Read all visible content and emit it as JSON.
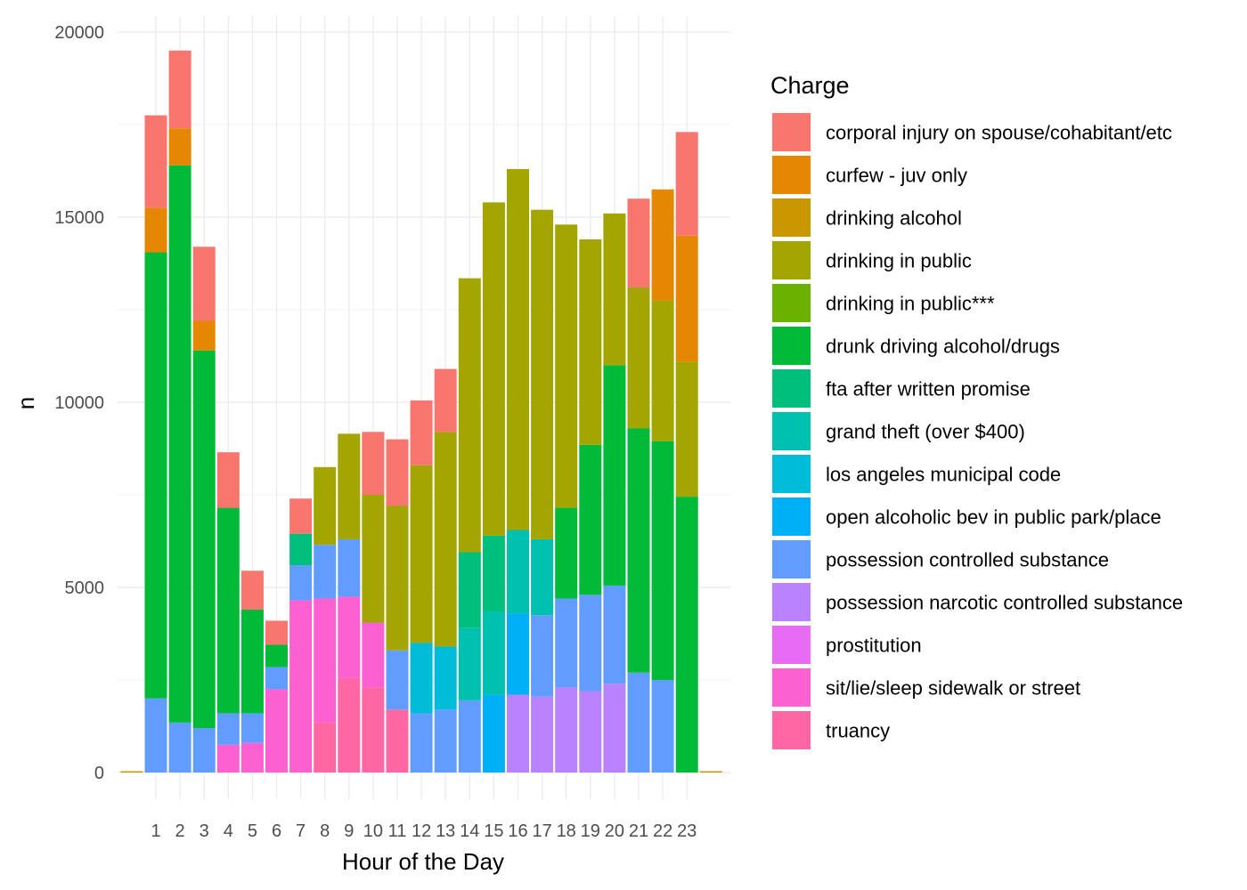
{
  "chart_data": {
    "type": "bar",
    "stacked": true,
    "title": "",
    "xlabel": "Hour of the Day",
    "ylabel": "n",
    "ylim": [
      0,
      20000
    ],
    "yticks": [
      "0",
      "5000",
      "10000",
      "15000",
      "20000"
    ],
    "categories": [
      "1",
      "2",
      "3",
      "4",
      "5",
      "6",
      "7",
      "8",
      "9",
      "10",
      "11",
      "12",
      "13",
      "14",
      "15",
      "16",
      "17",
      "18",
      "19",
      "20",
      "21",
      "22",
      "23"
    ],
    "grid": true,
    "legend_position": "right",
    "legend_title": "Charge",
    "series": [
      {
        "name": "corporal injury on spouse/cohabitant/etc",
        "color": "#F8766D",
        "values": [
          2500,
          2100,
          2000,
          1500,
          1050,
          650,
          950,
          0,
          0,
          1700,
          1800,
          1750,
          1700,
          0,
          0,
          0,
          0,
          0,
          0,
          0,
          2400,
          0,
          2800
        ]
      },
      {
        "name": "curfew - juv only",
        "color": "#E58700",
        "values": [
          1200,
          1000,
          800,
          0,
          0,
          0,
          0,
          0,
          0,
          0,
          0,
          0,
          0,
          0,
          0,
          0,
          0,
          0,
          0,
          0,
          0,
          3000,
          3400
        ]
      },
      {
        "name": "drinking alcohol",
        "color": "#C99800",
        "values": [
          0,
          0,
          0,
          0,
          0,
          0,
          0,
          0,
          0,
          0,
          0,
          0,
          0,
          0,
          0,
          0,
          0,
          0,
          0,
          0,
          0,
          0,
          0
        ]
      },
      {
        "name": "drinking in public",
        "color": "#A3A500",
        "values": [
          0,
          0,
          0,
          0,
          0,
          0,
          0,
          2100,
          2850,
          3450,
          3900,
          4800,
          5800,
          7400,
          9000,
          9750,
          8900,
          7650,
          5550,
          4100,
          3800,
          3800,
          3650
        ]
      },
      {
        "name": "drinking in public***",
        "color": "#6BB100",
        "values": [
          0,
          0,
          0,
          0,
          0,
          0,
          0,
          0,
          0,
          0,
          0,
          0,
          0,
          0,
          0,
          0,
          0,
          0,
          0,
          0,
          0,
          0,
          0
        ]
      },
      {
        "name": "drunk driving alcohol/drugs",
        "color": "#00BA38",
        "values": [
          12050,
          15050,
          10200,
          5550,
          2800,
          600,
          0,
          0,
          0,
          0,
          0,
          0,
          0,
          0,
          0,
          0,
          0,
          2450,
          4050,
          5950,
          6600,
          6450,
          7450
        ]
      },
      {
        "name": "fta after written promise",
        "color": "#00BF7D",
        "values": [
          0,
          0,
          0,
          0,
          0,
          0,
          850,
          0,
          0,
          0,
          0,
          0,
          0,
          2050,
          2050,
          0,
          0,
          0,
          0,
          0,
          0,
          0,
          0
        ]
      },
      {
        "name": "grand theft (over $400)",
        "color": "#00C0AF",
        "values": [
          0,
          0,
          0,
          0,
          0,
          0,
          0,
          0,
          0,
          0,
          0,
          0,
          0,
          1950,
          2250,
          2250,
          2050,
          0,
          0,
          0,
          0,
          0,
          0
        ]
      },
      {
        "name": "los angeles municipal code",
        "color": "#00BCD8",
        "values": [
          0,
          0,
          0,
          0,
          0,
          0,
          0,
          0,
          0,
          0,
          0,
          1900,
          1700,
          0,
          0,
          0,
          0,
          0,
          0,
          0,
          0,
          0,
          0
        ]
      },
      {
        "name": "open alcoholic bev in public park/place",
        "color": "#00B0F6",
        "values": [
          0,
          0,
          0,
          0,
          0,
          0,
          0,
          0,
          0,
          0,
          0,
          0,
          0,
          0,
          2100,
          2200,
          0,
          0,
          0,
          0,
          0,
          0,
          0
        ]
      },
      {
        "name": "possession controlled substance",
        "color": "#619CFF",
        "values": [
          2000,
          1350,
          1200,
          850,
          800,
          600,
          950,
          1450,
          1550,
          0,
          1600,
          1600,
          1700,
          1950,
          0,
          0,
          2200,
          2400,
          2600,
          2650,
          2700,
          2500,
          0
        ]
      },
      {
        "name": "possession narcotic controlled substance",
        "color": "#B983FF",
        "values": [
          0,
          0,
          0,
          0,
          0,
          0,
          0,
          0,
          0,
          0,
          0,
          0,
          0,
          0,
          0,
          2100,
          2050,
          2300,
          2200,
          2400,
          0,
          0,
          0
        ]
      },
      {
        "name": "prostitution",
        "color": "#E76BF3",
        "values": [
          0,
          0,
          0,
          0,
          0,
          0,
          0,
          0,
          0,
          0,
          0,
          0,
          0,
          0,
          0,
          0,
          0,
          0,
          0,
          0,
          0,
          0,
          0
        ]
      },
      {
        "name": "sit/lie/sleep sidewalk or street",
        "color": "#FD61D1",
        "values": [
          0,
          0,
          0,
          750,
          800,
          2250,
          4650,
          3350,
          2200,
          1750,
          0,
          0,
          0,
          0,
          0,
          0,
          0,
          0,
          0,
          0,
          0,
          0,
          0
        ]
      },
      {
        "name": "truancy",
        "color": "#FF67A4",
        "values": [
          0,
          0,
          0,
          0,
          0,
          0,
          0,
          1350,
          2550,
          2300,
          1700,
          0,
          0,
          0,
          0,
          0,
          0,
          0,
          0,
          0,
          0,
          0,
          0
        ]
      }
    ]
  }
}
